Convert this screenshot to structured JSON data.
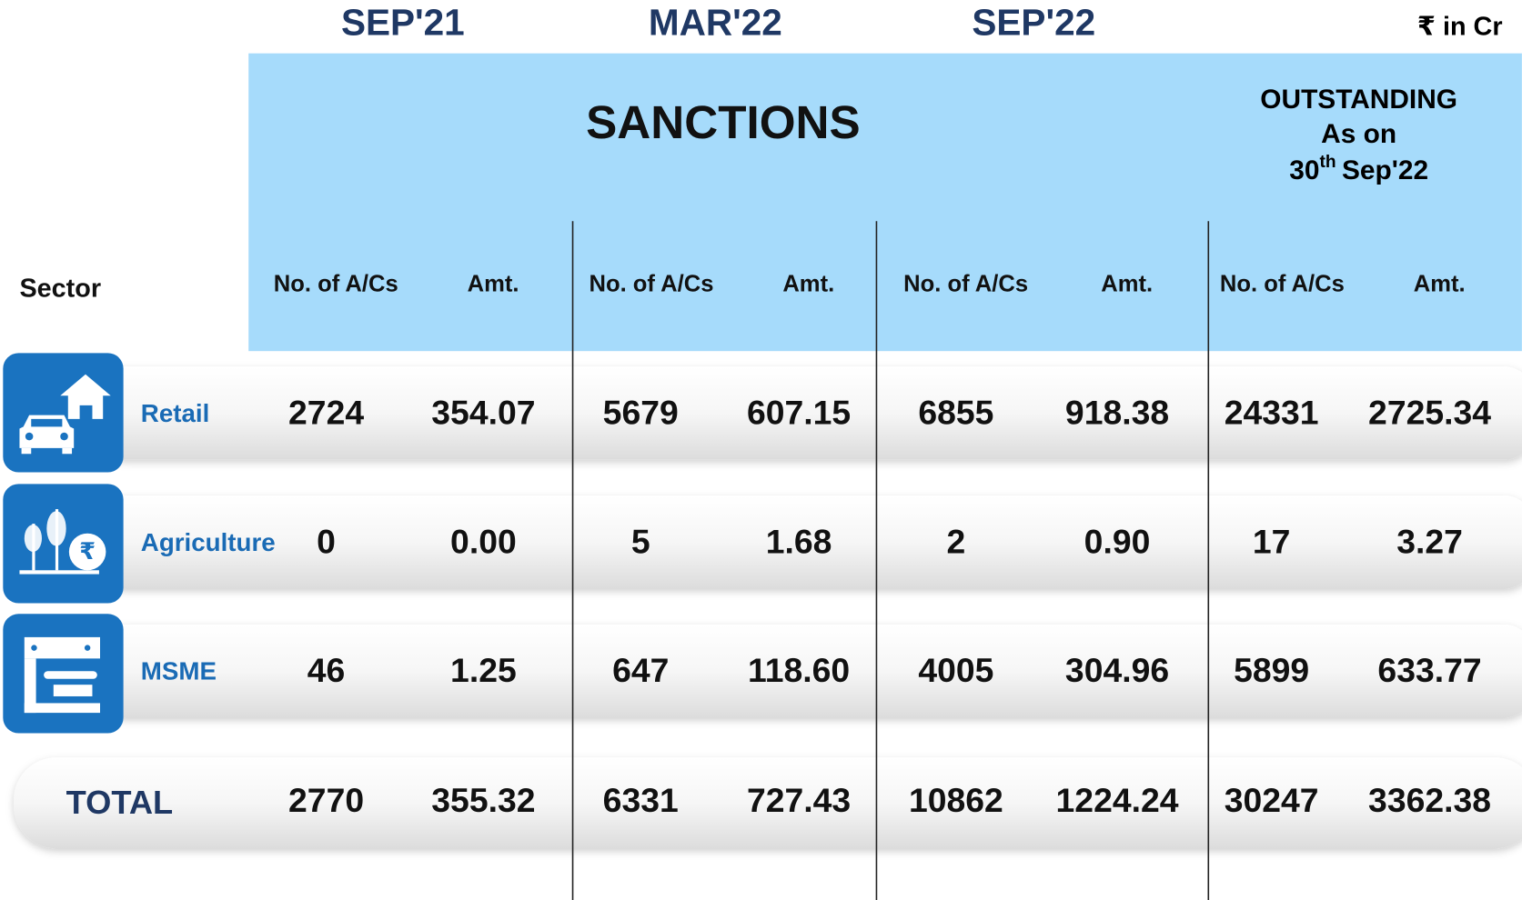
{
  "header": {
    "periods": [
      "SEP'21",
      "MAR'22",
      "SEP'22"
    ],
    "unit": "₹ in Cr",
    "sanctions": "SANCTIONS",
    "outstanding": {
      "line1": "OUTSTANDING",
      "line2": "As on",
      "day": "30",
      "suffix": "th",
      "month": "Sep'22"
    }
  },
  "table": {
    "sector_header": "Sector",
    "columns": [
      "No. of A/Cs",
      "Amt.",
      "No. of A/Cs",
      "Amt.",
      "No. of A/Cs",
      "Amt.",
      "No. of A/Cs",
      "Amt."
    ],
    "rows": [
      {
        "sector": "Retail",
        "values": [
          "2724",
          "354.07",
          "5679",
          "607.15",
          "6855",
          "918.38",
          "24331",
          "2725.34"
        ]
      },
      {
        "sector": "Agriculture",
        "values": [
          "0",
          "0.00",
          "5",
          "1.68",
          "2",
          "0.90",
          "17",
          "3.27"
        ]
      },
      {
        "sector": "MSME",
        "values": [
          "46",
          "1.25",
          "647",
          "118.60",
          "4005",
          "304.96",
          "5899",
          "633.77"
        ]
      }
    ],
    "total": {
      "label": "TOTAL",
      "values": [
        "2770",
        "355.32",
        "6331",
        "727.43",
        "10862",
        "1224.24",
        "30247",
        "3362.38"
      ]
    }
  }
}
